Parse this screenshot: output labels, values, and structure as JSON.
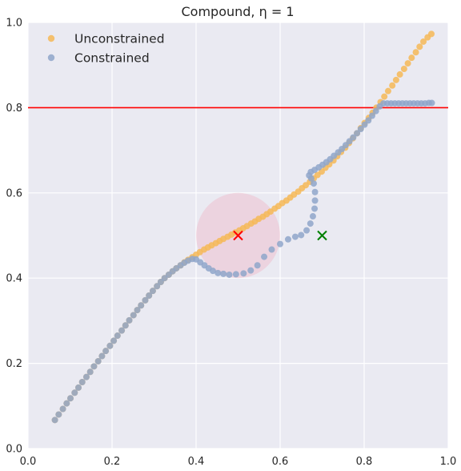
{
  "chart_data": {
    "type": "scatter",
    "title": "Compound, η = 1",
    "xlim": [
      0,
      1
    ],
    "ylim": [
      0,
      1
    ],
    "xticks": [
      "0.0",
      "0.2",
      "0.4",
      "0.6",
      "0.8",
      "1.0"
    ],
    "yticks": [
      "0.0",
      "0.2",
      "0.4",
      "0.6",
      "0.8",
      "1.0"
    ],
    "grid": true,
    "legend_position": "top-left",
    "background_color": "#eaeaf2",
    "series": [
      {
        "name": "Unconstrained",
        "color": "#f6b957",
        "x": [
          0.064,
          0.073,
          0.083,
          0.092,
          0.101,
          0.111,
          0.12,
          0.129,
          0.139,
          0.148,
          0.157,
          0.167,
          0.176,
          0.185,
          0.195,
          0.204,
          0.213,
          0.223,
          0.232,
          0.241,
          0.251,
          0.26,
          0.269,
          0.279,
          0.288,
          0.297,
          0.307,
          0.316,
          0.325,
          0.335,
          0.344,
          0.353,
          0.363,
          0.372,
          0.381,
          0.391,
          0.4,
          0.409,
          0.419,
          0.428,
          0.437,
          0.447,
          0.456,
          0.465,
          0.475,
          0.484,
          0.493,
          0.503,
          0.512,
          0.521,
          0.531,
          0.54,
          0.549,
          0.559,
          0.568,
          0.577,
          0.587,
          0.596,
          0.605,
          0.615,
          0.624,
          0.633,
          0.643,
          0.652,
          0.661,
          0.671,
          0.68,
          0.689,
          0.699,
          0.708,
          0.717,
          0.727,
          0.736,
          0.745,
          0.755,
          0.764,
          0.773,
          0.783,
          0.792,
          0.801,
          0.811,
          0.82,
          0.829,
          0.839,
          0.848,
          0.857,
          0.867,
          0.876,
          0.885,
          0.895,
          0.904,
          0.913,
          0.923,
          0.932,
          0.941,
          0.951,
          0.96
        ],
        "y": [
          0.067,
          0.08,
          0.093,
          0.106,
          0.118,
          0.131,
          0.143,
          0.156,
          0.168,
          0.18,
          0.193,
          0.205,
          0.217,
          0.229,
          0.241,
          0.253,
          0.265,
          0.277,
          0.289,
          0.301,
          0.313,
          0.325,
          0.336,
          0.348,
          0.359,
          0.37,
          0.381,
          0.391,
          0.4,
          0.408,
          0.416,
          0.423,
          0.43,
          0.437,
          0.443,
          0.449,
          0.455,
          0.461,
          0.467,
          0.472,
          0.477,
          0.482,
          0.487,
          0.492,
          0.497,
          0.502,
          0.507,
          0.512,
          0.517,
          0.522,
          0.528,
          0.533,
          0.539,
          0.544,
          0.55,
          0.556,
          0.563,
          0.569,
          0.576,
          0.582,
          0.589,
          0.596,
          0.603,
          0.611,
          0.618,
          0.626,
          0.634,
          0.642,
          0.65,
          0.659,
          0.667,
          0.676,
          0.686,
          0.696,
          0.706,
          0.717,
          0.728,
          0.74,
          0.752,
          0.764,
          0.776,
          0.788,
          0.8,
          0.813,
          0.826,
          0.839,
          0.852,
          0.865,
          0.878,
          0.891,
          0.904,
          0.917,
          0.93,
          0.943,
          0.955,
          0.965,
          0.973
        ]
      },
      {
        "name": "Constrained",
        "color": "#8fa6ca",
        "x": [
          0.064,
          0.073,
          0.083,
          0.092,
          0.101,
          0.111,
          0.12,
          0.129,
          0.139,
          0.148,
          0.157,
          0.167,
          0.176,
          0.185,
          0.195,
          0.204,
          0.213,
          0.223,
          0.232,
          0.241,
          0.251,
          0.26,
          0.269,
          0.279,
          0.288,
          0.297,
          0.307,
          0.316,
          0.325,
          0.335,
          0.344,
          0.353,
          0.363,
          0.372,
          0.381,
          0.391,
          0.4,
          0.41,
          0.42,
          0.43,
          0.44,
          0.452,
          0.465,
          0.479,
          0.495,
          0.513,
          0.53,
          0.546,
          0.562,
          0.58,
          0.6,
          0.619,
          0.636,
          0.65,
          0.663,
          0.672,
          0.678,
          0.682,
          0.683,
          0.683,
          0.68,
          0.674,
          0.669,
          0.673,
          0.682,
          0.692,
          0.701,
          0.71,
          0.719,
          0.728,
          0.738,
          0.747,
          0.756,
          0.765,
          0.774,
          0.783,
          0.792,
          0.801,
          0.81,
          0.819,
          0.828,
          0.837,
          0.846,
          0.855,
          0.864,
          0.873,
          0.882,
          0.891,
          0.9,
          0.909,
          0.918,
          0.927,
          0.936,
          0.945,
          0.954,
          0.961
        ],
        "y": [
          0.067,
          0.08,
          0.093,
          0.106,
          0.118,
          0.131,
          0.143,
          0.156,
          0.168,
          0.18,
          0.193,
          0.205,
          0.217,
          0.229,
          0.241,
          0.253,
          0.265,
          0.277,
          0.289,
          0.301,
          0.313,
          0.325,
          0.336,
          0.348,
          0.359,
          0.37,
          0.381,
          0.391,
          0.4,
          0.408,
          0.416,
          0.423,
          0.43,
          0.436,
          0.441,
          0.445,
          0.444,
          0.437,
          0.43,
          0.423,
          0.417,
          0.412,
          0.41,
          0.408,
          0.409,
          0.411,
          0.418,
          0.43,
          0.45,
          0.467,
          0.48,
          0.491,
          0.497,
          0.501,
          0.512,
          0.528,
          0.545,
          0.563,
          0.582,
          0.602,
          0.622,
          0.634,
          0.641,
          0.649,
          0.654,
          0.66,
          0.666,
          0.672,
          0.679,
          0.687,
          0.695,
          0.703,
          0.712,
          0.721,
          0.73,
          0.74,
          0.75,
          0.76,
          0.77,
          0.781,
          0.792,
          0.803,
          0.81,
          0.81,
          0.81,
          0.81,
          0.81,
          0.81,
          0.81,
          0.81,
          0.81,
          0.81,
          0.81,
          0.81,
          0.811,
          0.811
        ]
      }
    ],
    "hline": {
      "y": 0.8,
      "color": "#ff0000"
    },
    "circle": {
      "cx": 0.5,
      "cy": 0.5,
      "r": 0.1,
      "color": "#f0b8c8"
    },
    "markers": [
      {
        "x": 0.5,
        "y": 0.5,
        "color": "#ff0000",
        "symbol": "x"
      },
      {
        "x": 0.7,
        "y": 0.5,
        "color": "#008000",
        "symbol": "x"
      }
    ]
  }
}
